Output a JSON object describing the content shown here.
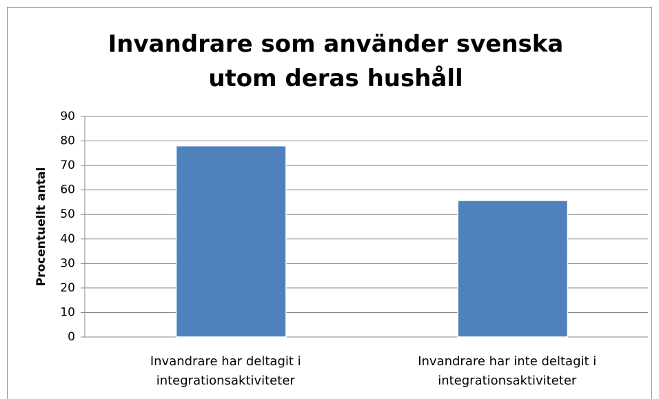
{
  "chart_data": {
    "type": "bar",
    "title": "Invandrare som använder svenska utom deras hushåll",
    "y_label": "Procentuellt antal",
    "categories": [
      "Invandrare har deltagit i integrationsaktiviteter",
      "Invandrare har inte deltagit i integrationsaktiviteter"
    ],
    "values": [
      78,
      55.7
    ],
    "color": "#4f81bd",
    "ylim": [
      0,
      90
    ],
    "yticks": [
      0,
      10,
      20,
      30,
      40,
      50,
      60,
      70,
      80,
      90
    ],
    "grid": true
  }
}
